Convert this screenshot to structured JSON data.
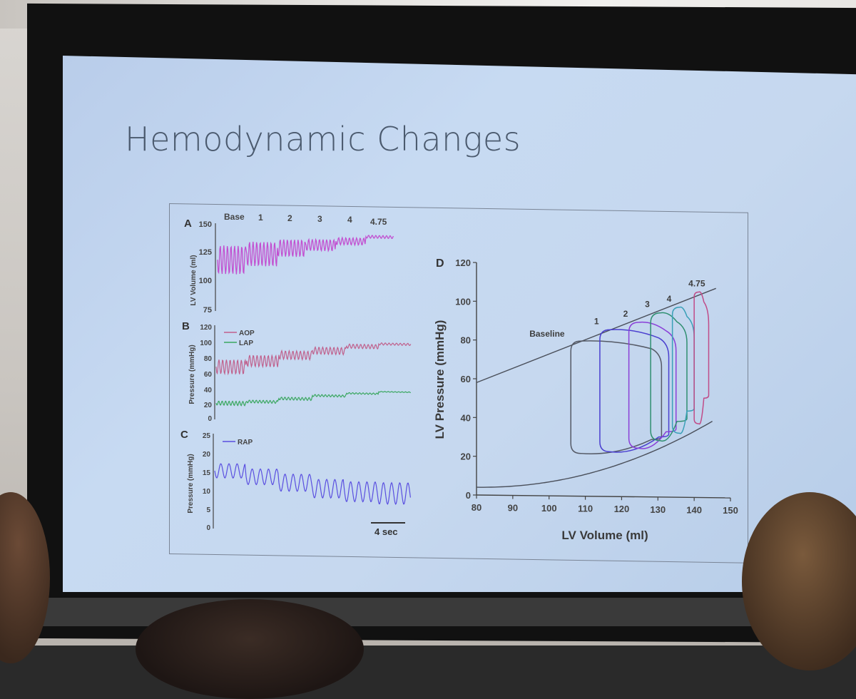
{
  "slide": {
    "title": "Hemodynamic Changes"
  },
  "panel_a": {
    "letter": "A",
    "ylabel": "LV Volume (ml)",
    "yticks": [
      "150",
      "125",
      "100",
      "75"
    ],
    "stage_labels": [
      "Base",
      "1",
      "2",
      "3",
      "4",
      "4.75"
    ],
    "color": "#c24fd0"
  },
  "panel_b": {
    "letter": "B",
    "ylabel": "Pressure (mmHg)",
    "yticks": [
      "120",
      "100",
      "80",
      "60",
      "40",
      "20",
      "0"
    ],
    "legend": [
      {
        "name": "AOP",
        "color": "#c0608c"
      },
      {
        "name": "LAP",
        "color": "#3aa760"
      }
    ]
  },
  "panel_c": {
    "letter": "C",
    "ylabel": "Pressure (mmHg)",
    "yticks": [
      "25",
      "20",
      "15",
      "10",
      "5",
      "0"
    ],
    "legend": [
      {
        "name": "RAP",
        "color": "#5a4fe0"
      }
    ],
    "scale_bar": "4 sec"
  },
  "chart_data": {
    "type": "line",
    "letter": "D",
    "xlabel": "LV Volume (ml)",
    "ylabel": "LV Pressure (mmHg)",
    "xlim": [
      80,
      150
    ],
    "ylim": [
      0,
      120
    ],
    "xticks": [
      "80",
      "90",
      "100",
      "110",
      "120",
      "130",
      "140",
      "150"
    ],
    "yticks": [
      "0",
      "20",
      "40",
      "60",
      "80",
      "100",
      "120"
    ],
    "series": [
      {
        "name": "Baseline",
        "color": "#555a66",
        "loop": {
          "vmin": 106,
          "vmax": 131,
          "pmin": 22,
          "pmax": 80
        }
      },
      {
        "name": "1",
        "color": "#4a3fcf",
        "loop": {
          "vmin": 114,
          "vmax": 133,
          "pmin": 23,
          "pmax": 86
        }
      },
      {
        "name": "2",
        "color": "#8a3fd8",
        "loop": {
          "vmin": 122,
          "vmax": 135,
          "pmin": 25,
          "pmax": 90
        }
      },
      {
        "name": "3",
        "color": "#2f8f70",
        "loop": {
          "vmin": 128,
          "vmax": 138,
          "pmin": 29,
          "pmax": 95
        }
      },
      {
        "name": "4",
        "color": "#3aa0b8",
        "loop": {
          "vmin": 134,
          "vmax": 140,
          "pmin": 33,
          "pmax": 98
        }
      },
      {
        "name": "4.75",
        "color": "#c04c88",
        "loop": {
          "vmin": 140,
          "vmax": 144,
          "pmin": 38,
          "pmax": 106
        }
      }
    ],
    "esp_line": {
      "x": [
        80,
        146
      ],
      "y": [
        58,
        108
      ]
    },
    "edp_curve": {
      "x": [
        80,
        100,
        115,
        125,
        135,
        145
      ],
      "y": [
        4,
        10,
        16,
        21,
        29,
        42
      ]
    }
  }
}
